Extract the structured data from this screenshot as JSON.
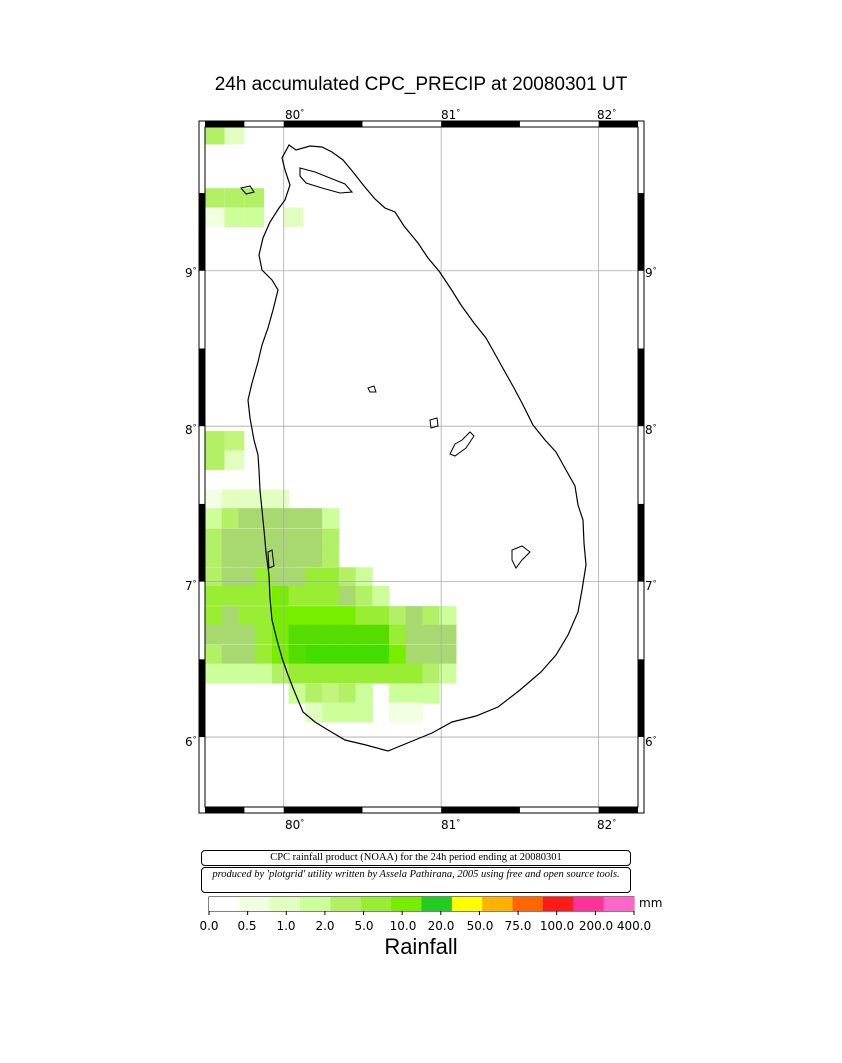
{
  "title": "24h accumulated CPC_PRECIP  at 20080301 UT",
  "map": {
    "lon_ticks": [
      "80",
      "81",
      "82"
    ],
    "lat_ticks": [
      "9",
      "8",
      "7",
      "6"
    ],
    "degree_symbol": "°",
    "rainfall_grid": [
      {
        "lon": 79.625,
        "lat": 9.875,
        "color": "#ccff99"
      },
      {
        "lon": 79.625,
        "lat": 9.875,
        "color": "#ccff99"
      },
      {
        "lon": 79.625,
        "lat": 9.4375,
        "color": "#b2f066"
      },
      {
        "lon": 79.75,
        "lat": 9.4375,
        "color": "#c2f57a"
      },
      {
        "lon": 79.875,
        "lat": 9.4375,
        "color": "#ccff99"
      },
      {
        "lon": 79.875,
        "lat": 9.5,
        "color": "#b2f066"
      },
      {
        "lon": 79.75,
        "lat": 9.5,
        "color": "#b2f066"
      },
      {
        "lon": 79.625,
        "lat": 9.5,
        "color": "#b2f066"
      }
    ]
  },
  "credits": {
    "line1": "CPC rainfall product (NOAA) for the 24h period ending at 20080301",
    "line2": "produced by 'plotgrid' utility written by Assela Pathirana, 2005 using free and open source tools."
  },
  "colorbar": {
    "labels": [
      "0.0",
      "0.5",
      "1.0",
      "2.0",
      "5.0",
      "10.0",
      "20.0",
      "50.0",
      "75.0",
      "100.0",
      "200.0",
      "400.0"
    ],
    "colors": [
      "#ffffff",
      "#f2ffe0",
      "#e2ffc0",
      "#ccff99",
      "#b2f066",
      "#99ee33",
      "#77ee00",
      "#22cc22",
      "#ffff00",
      "#ffb300",
      "#ff6600",
      "#ff1a1a",
      "#ff3399",
      "#ff66cc"
    ],
    "unit": "mm",
    "title": "Rainfall"
  }
}
